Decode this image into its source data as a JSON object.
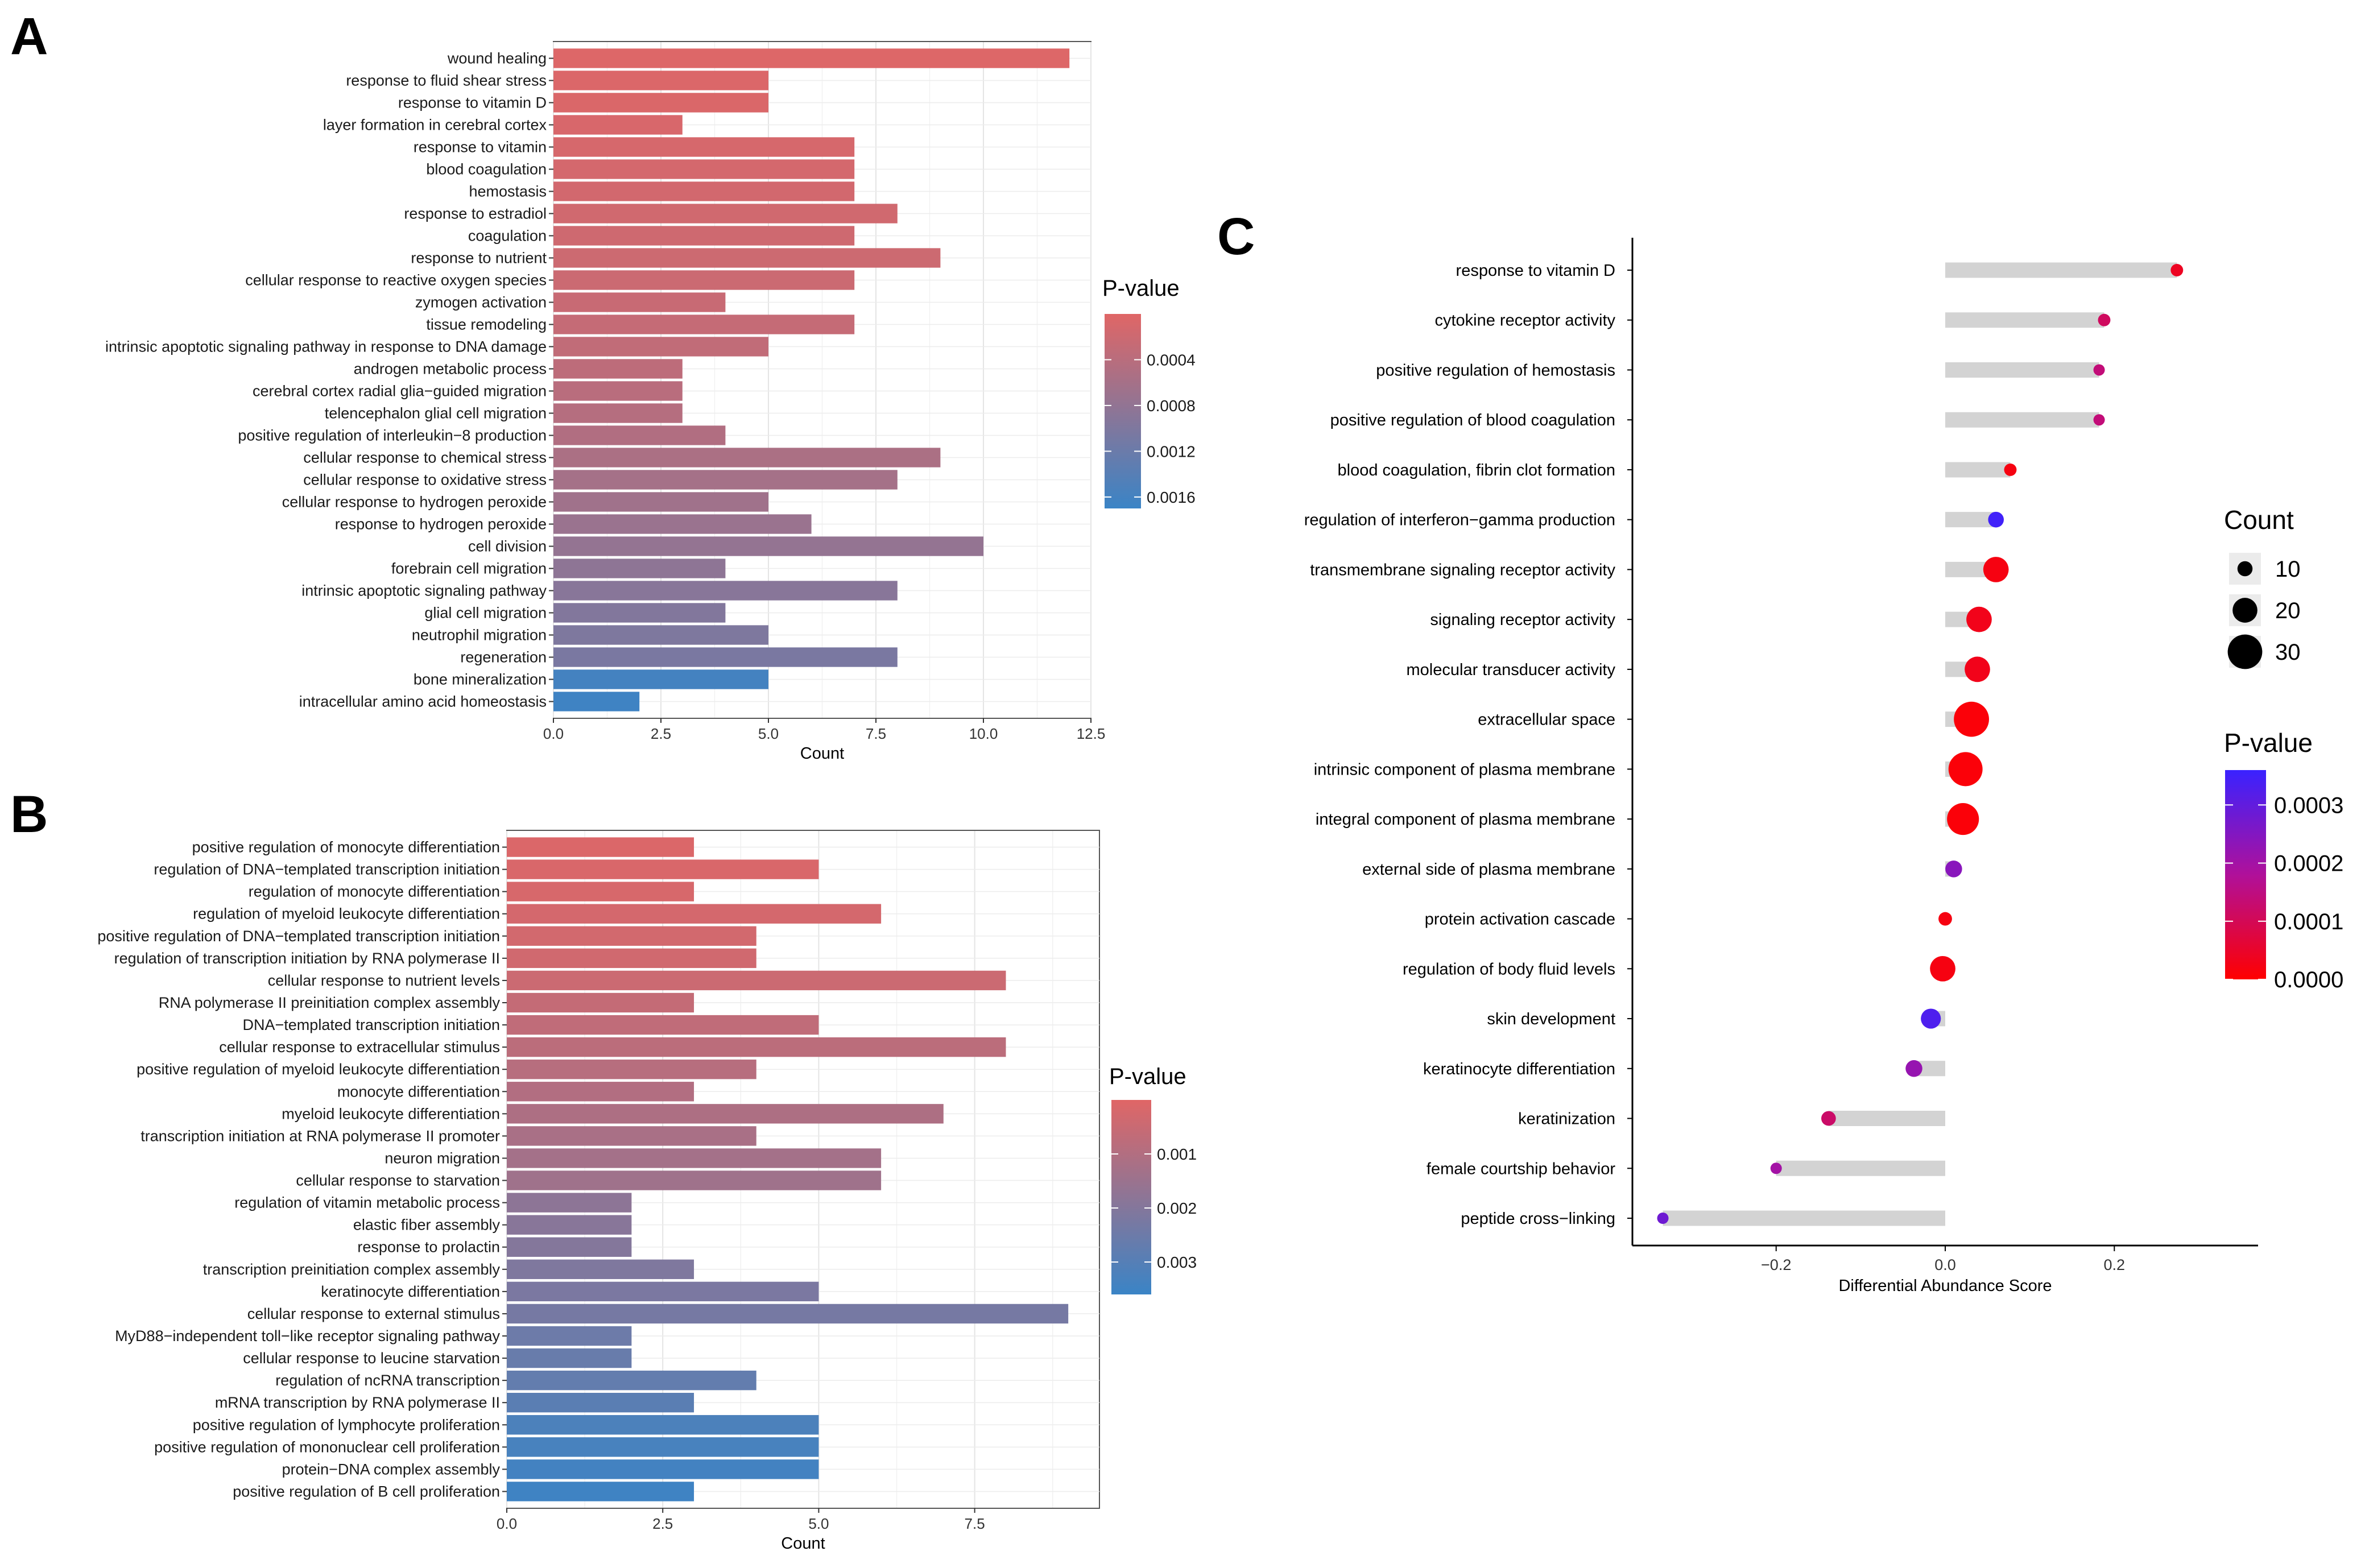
{
  "panels": {
    "a": "A",
    "b": "B",
    "c": "C"
  },
  "chart_data": [
    {
      "type": "bar",
      "orientation": "horizontal",
      "title": "",
      "xlabel": "Count",
      "ylabel": "",
      "xlim": [
        0,
        12.5
      ],
      "xticks": [
        "0.0",
        "2.5",
        "5.0",
        "7.5",
        "10.0",
        "12.5"
      ],
      "grid": true,
      "color_scale": {
        "low_color": "#e06666",
        "high_color": "#3a84c6",
        "min": 0.0,
        "max": 0.0017
      },
      "legend": {
        "title": "P-value",
        "labels": [
          "0.0004",
          "0.0008",
          "0.0012",
          "0.0016"
        ],
        "values": [
          0.0004,
          0.0008,
          0.0012,
          0.0016
        ],
        "placement": "right"
      },
      "categories": [
        "wound healing",
        "response to fluid shear stress",
        "response to vitamin D",
        "layer formation in cerebral cortex",
        "response to vitamin",
        "blood coagulation",
        "hemostasis",
        "response to estradiol",
        "coagulation",
        "response to nutrient",
        "cellular response to reactive oxygen species",
        "zymogen activation",
        "tissue remodeling",
        "intrinsic apoptotic signaling pathway in response to DNA damage",
        "androgen metabolic process",
        "cerebral cortex radial glia−guided migration",
        "telencephalon glial cell migration",
        "positive regulation of interleukin−8 production",
        "cellular response to chemical stress",
        "cellular response to oxidative stress",
        "cellular response to hydrogen peroxide",
        "response to hydrogen peroxide",
        "cell division",
        "forebrain cell migration",
        "intrinsic apoptotic signaling pathway",
        "glial cell migration",
        "neutrophil migration",
        "regeneration",
        "bone mineralization",
        "intracellular amino acid homeostasis"
      ],
      "values": [
        12,
        5,
        5,
        3,
        7,
        7,
        7,
        8,
        7,
        9,
        7,
        4,
        7,
        5,
        3,
        3,
        3,
        4,
        9,
        8,
        5,
        6,
        10,
        4,
        8,
        4,
        5,
        8,
        5,
        2
      ],
      "p_values": [
        3e-05,
        5e-05,
        6e-05,
        8e-05,
        0.0001,
        0.00012,
        0.00014,
        0.00016,
        0.00018,
        0.0002,
        0.00022,
        0.00025,
        0.00028,
        0.00032,
        0.00036,
        0.0004,
        0.00044,
        0.00048,
        0.00054,
        0.0006,
        0.00066,
        0.00072,
        0.00078,
        0.00084,
        0.0009,
        0.00096,
        0.001,
        0.00104,
        0.0016,
        0.00165
      ]
    },
    {
      "type": "bar",
      "orientation": "horizontal",
      "title": "",
      "xlabel": "Count",
      "ylabel": "",
      "xlim": [
        0,
        9.5
      ],
      "xticks": [
        "0.0",
        "2.5",
        "5.0",
        "7.5"
      ],
      "grid": true,
      "color_scale": {
        "low_color": "#e06666",
        "high_color": "#3a84c6",
        "min": 0.0,
        "max": 0.0036
      },
      "legend": {
        "title": "P-value",
        "labels": [
          "0.001",
          "0.002",
          "0.003"
        ],
        "values": [
          0.001,
          0.002,
          0.003
        ],
        "placement": "right"
      },
      "categories": [
        "positive regulation of monocyte differentiation",
        "regulation of DNA−templated transcription initiation",
        "regulation of monocyte differentiation",
        "regulation of myeloid leukocyte differentiation",
        "positive regulation of DNA−templated transcription initiation",
        "regulation of transcription initiation by RNA polymerase II",
        "cellular response to nutrient levels",
        "RNA polymerase II preinitiation complex assembly",
        "DNA−templated transcription initiation",
        "cellular response to extracellular stimulus",
        "positive regulation of myeloid leukocyte differentiation",
        "monocyte differentiation",
        "myeloid leukocyte differentiation",
        "transcription initiation at RNA polymerase II promoter",
        "neuron migration",
        "cellular response to starvation",
        "regulation of vitamin metabolic process",
        "elastic fiber assembly",
        "response to prolactin",
        "transcription preinitiation complex assembly",
        "keratinocyte differentiation",
        "cellular response to external stimulus",
        "MyD88−independent toll−like receptor signaling pathway",
        "cellular response to leucine starvation",
        "regulation of ncRNA transcription",
        "mRNA transcription by RNA polymerase II",
        "positive regulation of lymphocyte proliferation",
        "positive regulation of mononuclear cell proliferation",
        "protein−DNA complex assembly",
        "positive regulation of B cell proliferation"
      ],
      "values": [
        3,
        5,
        3,
        6,
        4,
        4,
        8,
        3,
        5,
        8,
        4,
        3,
        7,
        4,
        6,
        6,
        2,
        2,
        2,
        3,
        5,
        9,
        2,
        2,
        4,
        3,
        5,
        5,
        5,
        3
      ],
      "p_values": [
        0.0001,
        0.00015,
        0.0002,
        0.00025,
        0.0003,
        0.00035,
        0.00045,
        0.0006,
        0.0007,
        0.0008,
        0.0009,
        0.001,
        0.0011,
        0.0012,
        0.0013,
        0.0014,
        0.0018,
        0.0019,
        0.002,
        0.0021,
        0.0022,
        0.0023,
        0.0025,
        0.0026,
        0.0027,
        0.0029,
        0.0032,
        0.0033,
        0.0034,
        0.0035
      ]
    },
    {
      "type": "lollipop",
      "title": "",
      "xlabel": "Differential Abundance Score",
      "ylabel": "",
      "xlim": [
        -0.37,
        0.37
      ],
      "xticks": [
        -0.2,
        0.0,
        0.2
      ],
      "xtick_labels": [
        "−0.2",
        "0.0",
        "0.2"
      ],
      "grid": false,
      "size_legend": {
        "title": "Count",
        "labels": [
          "10",
          "20",
          "30"
        ],
        "values": [
          10,
          20,
          30
        ],
        "placement": "right"
      },
      "color_legend": {
        "title": "P-value",
        "labels": [
          "0.0003",
          "0.0002",
          "0.0001",
          "0.0000"
        ],
        "values": [
          0.0003,
          0.0002,
          0.0001,
          0.0
        ],
        "low_color": "#ff0000",
        "high_color": "#3a22ff",
        "max": 0.00036,
        "placement": "right"
      },
      "categories": [
        "response to vitamin D",
        "cytokine receptor activity",
        "positive regulation of hemostasis",
        "positive regulation of blood coagulation",
        "blood coagulation, fibrin clot formation",
        "regulation of interferon−gamma production",
        "transmembrane signaling receptor activity",
        "signaling receptor activity",
        "molecular transducer activity",
        "extracellular space",
        "intrinsic component of plasma membrane",
        "integral component of plasma membrane",
        "external side of plasma membrane",
        "protein activation cascade",
        "regulation of body fluid levels",
        "skin development",
        "keratinocyte differentiation",
        "keratinization",
        "female courtship behavior",
        "peptide cross−linking"
      ],
      "scores": [
        0.274,
        0.188,
        0.182,
        0.182,
        0.077,
        0.06,
        0.06,
        0.04,
        0.038,
        0.031,
        0.024,
        0.021,
        0.01,
        0.0,
        -0.003,
        -0.017,
        -0.037,
        -0.138,
        -0.2,
        -0.334
      ],
      "counts": [
        6,
        6,
        5,
        5,
        6,
        9,
        18,
        18,
        18,
        27,
        26,
        24,
        10,
        7,
        18,
        13,
        10,
        8,
        5,
        5
      ],
      "p_values": [
        4e-05,
        0.00011,
        0.00014,
        0.00014,
        2e-05,
        0.00035,
        2e-05,
        3e-05,
        3e-05,
        1e-05,
        1e-05,
        1e-05,
        0.00024,
        2e-05,
        2e-05,
        0.00033,
        0.00022,
        0.00012,
        0.0002,
        0.00028
      ]
    }
  ]
}
